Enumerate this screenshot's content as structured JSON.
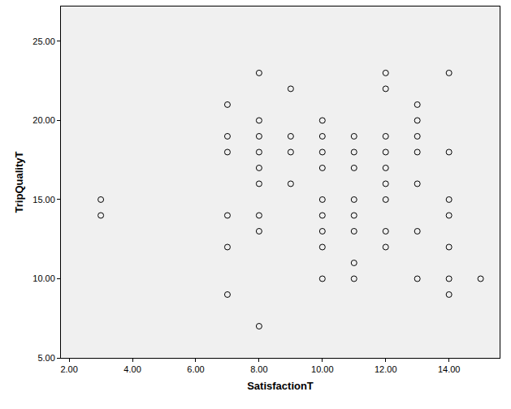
{
  "chart_data": {
    "type": "scatter",
    "x_label": "SatisfactionT",
    "y_label": "TripQualityT",
    "x": [
      3,
      3,
      7,
      7,
      7,
      7,
      7,
      7,
      8,
      8,
      8,
      8,
      8,
      8,
      8,
      8,
      8,
      9,
      9,
      9,
      9,
      10,
      10,
      10,
      10,
      10,
      10,
      10,
      10,
      10,
      11,
      11,
      11,
      11,
      11,
      11,
      11,
      11,
      12,
      12,
      12,
      12,
      12,
      12,
      12,
      12,
      12,
      13,
      13,
      13,
      13,
      13,
      13,
      13,
      14,
      14,
      14,
      14,
      14,
      14,
      14,
      15
    ],
    "values": [
      15,
      14,
      21,
      19,
      18,
      14,
      12,
      9,
      23,
      20,
      19,
      18,
      17,
      16,
      14,
      13,
      7,
      22,
      19,
      18,
      16,
      20,
      19,
      18,
      17,
      15,
      14,
      13,
      12,
      10,
      19,
      18,
      17,
      15,
      14,
      13,
      11,
      10,
      23,
      22,
      19,
      18,
      17,
      16,
      15,
      13,
      12,
      21,
      20,
      19,
      18,
      16,
      13,
      10,
      23,
      18,
      15,
      14,
      12,
      10,
      9,
      10
    ],
    "color": "#000000",
    "marker": "circle-open",
    "grid": false,
    "xlim": [
      1.74,
      15.6
    ],
    "ylim": [
      5,
      27.2
    ],
    "xticks": [
      {
        "value": 2,
        "label": "2.00"
      },
      {
        "value": 4,
        "label": "4.00"
      },
      {
        "value": 6,
        "label": "6.00"
      },
      {
        "value": 8,
        "label": "8.00"
      },
      {
        "value": 10,
        "label": "10.00"
      },
      {
        "value": 12,
        "label": "12.00"
      },
      {
        "value": 14,
        "label": "14.00"
      }
    ],
    "yticks": [
      {
        "value": 5,
        "label": "5.00"
      },
      {
        "value": 10,
        "label": "10.00"
      },
      {
        "value": 15,
        "label": "15.00"
      },
      {
        "value": 20,
        "label": "20.00"
      },
      {
        "value": 25,
        "label": "25.00"
      }
    ]
  }
}
